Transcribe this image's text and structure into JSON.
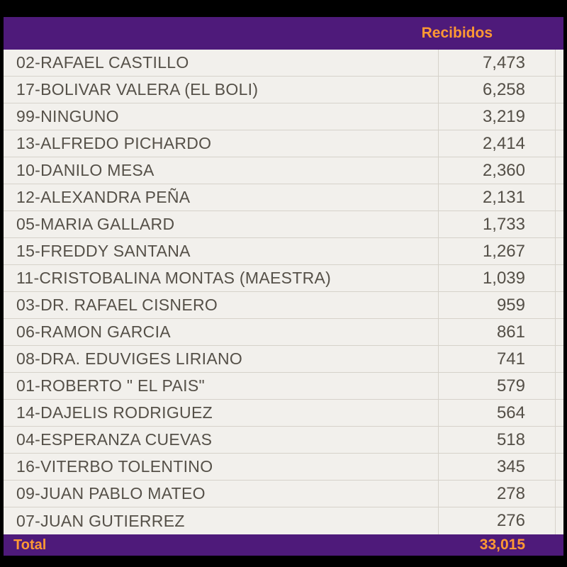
{
  "header": {
    "received_label": "Recibidos"
  },
  "colors": {
    "header_bg": "#4e1a7a",
    "header_text": "#ff9933",
    "body_bg": "#f2f0ec",
    "body_text": "#555048",
    "grid": "#d6d2ca",
    "page_bg": "#000000"
  },
  "rows": [
    {
      "name": "02-RAFAEL CASTILLO",
      "value": "7,473"
    },
    {
      "name": "17-BOLIVAR VALERA (EL BOLI)",
      "value": "6,258"
    },
    {
      "name": "99-NINGUNO",
      "value": "3,219"
    },
    {
      "name": "13-ALFREDO PICHARDO",
      "value": "2,414"
    },
    {
      "name": "10-DANILO MESA",
      "value": "2,360"
    },
    {
      "name": "12-ALEXANDRA PEÑA",
      "value": "2,131"
    },
    {
      "name": "05-MARIA GALLARD",
      "value": "1,733"
    },
    {
      "name": "15-FREDDY SANTANA",
      "value": "1,267"
    },
    {
      "name": "11-CRISTOBALINA MONTAS (MAESTRA)",
      "value": "1,039"
    },
    {
      "name": "03-DR. RAFAEL CISNERO",
      "value": "959"
    },
    {
      "name": "06-RAMON GARCIA",
      "value": "861"
    },
    {
      "name": "08-DRA. EDUVIGES LIRIANO",
      "value": "741"
    },
    {
      "name": "01-ROBERTO \" EL PAIS\"",
      "value": "579"
    },
    {
      "name": "14-DAJELIS RODRIGUEZ",
      "value": "564"
    },
    {
      "name": "04-ESPERANZA CUEVAS",
      "value": "518"
    },
    {
      "name": "16-VITERBO TOLENTINO",
      "value": "345"
    },
    {
      "name": "09-JUAN PABLO MATEO",
      "value": "278"
    },
    {
      "name": "07-JUAN GUTIERREZ",
      "value": "276"
    }
  ],
  "total": {
    "label": "Total",
    "value": "33,015"
  }
}
